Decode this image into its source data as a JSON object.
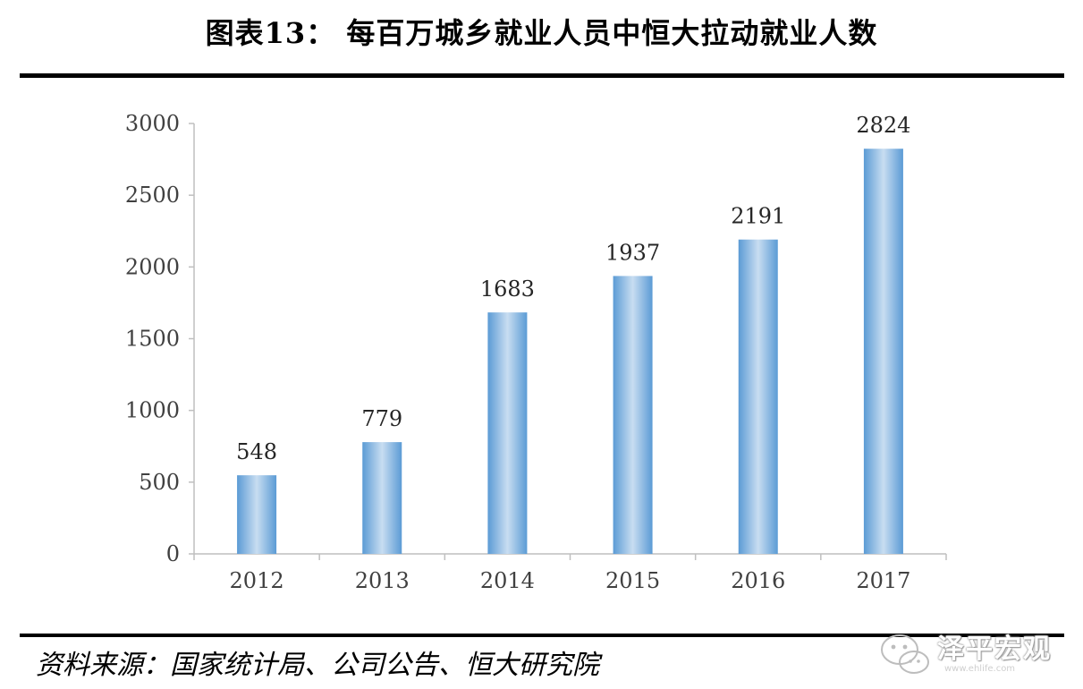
{
  "title": "图表13：    每百万城乡就业人员中恒大拉动就业人数",
  "source": "资料来源：国家统计局、公司公告、恒大研究院",
  "watermark": {
    "text": "泽平宏观",
    "url": "www.ehlife.com",
    "icon": "wechat-icon"
  },
  "colors": {
    "bar_edge": "#5b9bd5",
    "bar_center": "#c8ddf1",
    "axis": "#bfbfbf"
  },
  "chart_data": {
    "type": "bar",
    "title": "",
    "xlabel": "",
    "ylabel": "",
    "categories": [
      "2012",
      "2013",
      "2014",
      "2015",
      "2016",
      "2017"
    ],
    "values": [
      548,
      779,
      1683,
      1937,
      2191,
      2824
    ],
    "ylim": [
      0,
      3000
    ],
    "yticks": [
      0,
      500,
      1000,
      1500,
      2000,
      2500,
      3000
    ],
    "data_labels": true,
    "grid": false,
    "legend": "none"
  }
}
